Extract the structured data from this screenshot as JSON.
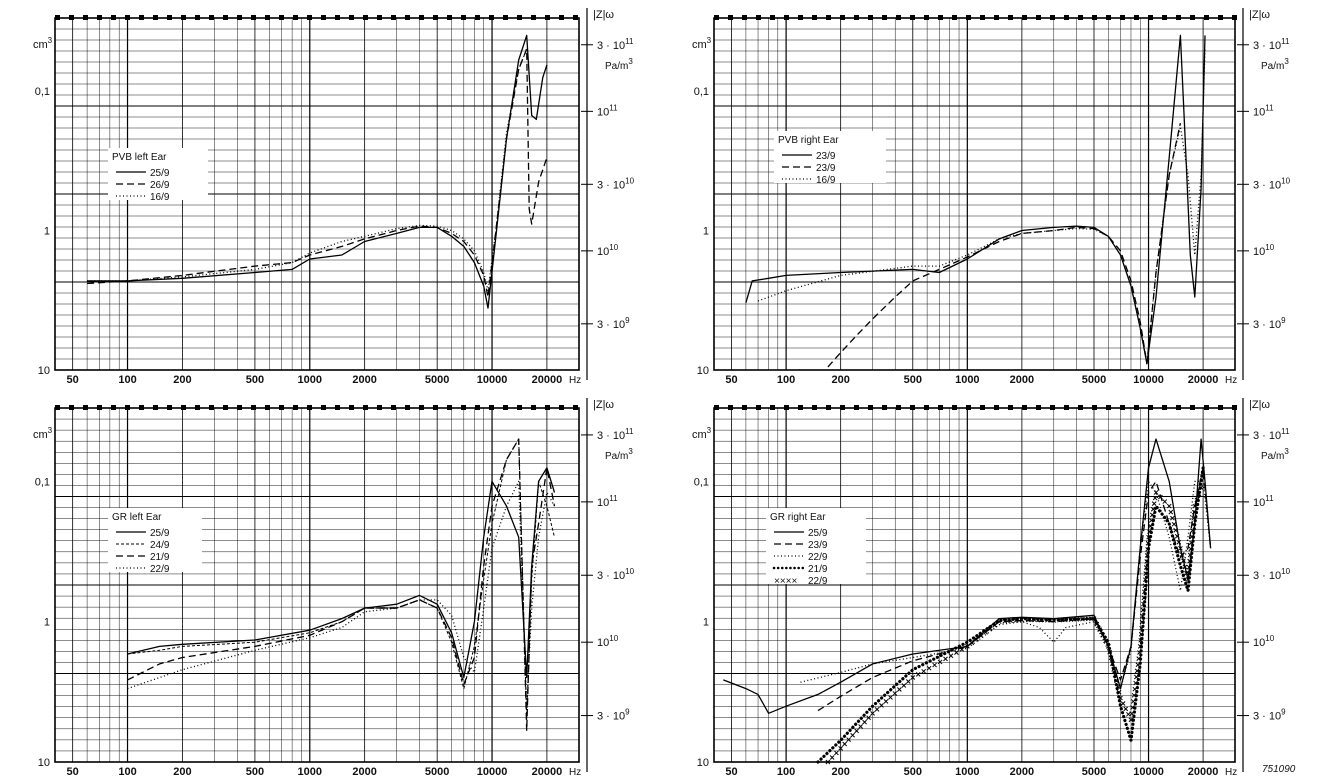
{
  "figure_id": "751090",
  "shared": {
    "x_tick_labels": [
      "50",
      "100",
      "200",
      "500",
      "1000",
      "2000",
      "5000",
      "10000",
      "20000"
    ],
    "x_unit": "Hz",
    "left_unit": "cm3",
    "left_tick_labels": [
      "0,1",
      "1",
      "10"
    ],
    "right_unit": "|Z|ω",
    "right_unit2": "Pa/m3",
    "right_tick_labels": [
      "3 · 10^11",
      "10^11",
      "3 · 10^10",
      "10^10",
      "3 · 10^9"
    ]
  },
  "chart_data": [
    {
      "type": "line",
      "panel": "top-left",
      "legend_title": "PVB left Ear",
      "x_scale": "log",
      "xlim": [
        40,
        30000
      ],
      "left_scale": "log",
      "left_axis_top": 0.03,
      "left_axis_bottom": 10,
      "series": [
        {
          "name": "25/9",
          "style": "solid",
          "x": [
            60,
            100,
            200,
            500,
            800,
            1000,
            1500,
            2000,
            3000,
            4000,
            5000,
            6000,
            7000,
            8000,
            9000,
            9500,
            10500,
            12000,
            14000,
            15500,
            16500,
            17500,
            19000,
            20000
          ],
          "y": [
            2.3,
            2.3,
            2.2,
            2.0,
            1.9,
            1.6,
            1.5,
            1.2,
            1.05,
            0.95,
            0.95,
            1.1,
            1.3,
            1.7,
            2.5,
            3.6,
            1.1,
            0.22,
            0.06,
            0.04,
            0.15,
            0.16,
            0.08,
            0.065
          ]
        },
        {
          "name": "26/9",
          "style": "dashed",
          "x": [
            60,
            100,
            200,
            500,
            800,
            1000,
            1500,
            2000,
            3000,
            4000,
            5000,
            6000,
            7000,
            8000,
            9000,
            9500,
            10500,
            12000,
            14000,
            15500,
            16000,
            16500,
            18000,
            20000
          ],
          "y": [
            2.4,
            2.3,
            2.1,
            1.8,
            1.7,
            1.5,
            1.3,
            1.15,
            1.0,
            0.93,
            0.95,
            1.05,
            1.2,
            1.5,
            2.1,
            3.0,
            1.0,
            0.22,
            0.07,
            0.05,
            0.7,
            0.9,
            0.45,
            0.3
          ]
        },
        {
          "name": "16/9",
          "style": "dotted",
          "x": [
            60,
            100,
            200,
            500,
            800,
            1000,
            1500,
            2000,
            3000,
            4000,
            5000,
            6000,
            7000,
            8000,
            9000,
            9500,
            10500,
            12000,
            14000,
            15500
          ],
          "y": [
            2.3,
            2.3,
            2.15,
            1.9,
            1.7,
            1.45,
            1.2,
            1.1,
            0.97,
            0.92,
            0.93,
            1.0,
            1.15,
            1.4,
            2.0,
            2.7,
            1.0,
            0.2,
            0.07,
            0.05
          ]
        }
      ]
    },
    {
      "type": "line",
      "panel": "top-right",
      "legend_title": "PVB right Ear",
      "x_scale": "log",
      "xlim": [
        40,
        30000
      ],
      "left_scale": "log",
      "left_axis_top": 0.03,
      "left_axis_bottom": 10,
      "series": [
        {
          "name": "23/9",
          "style": "solid",
          "x": [
            60,
            65,
            80,
            100,
            200,
            500,
            700,
            1000,
            1500,
            2000,
            3000,
            4000,
            5000,
            6000,
            7000,
            8000,
            9000,
            9800,
            11000,
            13000,
            15000,
            16000,
            17000,
            18000,
            19500,
            20500
          ],
          "y": [
            3.3,
            2.3,
            2.2,
            2.1,
            2.0,
            1.9,
            2.0,
            1.6,
            1.15,
            1.0,
            0.95,
            0.93,
            0.95,
            1.1,
            1.5,
            2.5,
            5.0,
            9.0,
            3.0,
            0.3,
            0.04,
            0.25,
            1.5,
            3.0,
            0.5,
            0.04
          ]
        },
        {
          "name": "23/9",
          "style": "dashed",
          "x": [
            170,
            200,
            250,
            300,
            400,
            500,
            700,
            1000,
            1500,
            2000,
            3000,
            4000,
            5000,
            6000,
            7000,
            8000,
            9000,
            9800,
            11000,
            13000,
            15000
          ],
          "y": [
            9.5,
            7.5,
            5.5,
            4.3,
            3.0,
            2.3,
            1.9,
            1.55,
            1.2,
            1.05,
            1.0,
            0.95,
            0.97,
            1.1,
            1.4,
            2.3,
            4.5,
            9.0,
            2.0,
            0.4,
            0.17
          ]
        },
        {
          "name": "16/9",
          "style": "dotted",
          "x": [
            70,
            100,
            200,
            500,
            700,
            1000,
            1500,
            2000,
            3000,
            4000,
            5000,
            6000,
            7000,
            8000,
            9000,
            9800,
            11000,
            13000,
            15000,
            16500,
            18000,
            19500,
            20500
          ],
          "y": [
            3.2,
            2.7,
            2.1,
            1.8,
            1.8,
            1.5,
            1.15,
            1.05,
            1.0,
            0.97,
            0.98,
            1.1,
            1.5,
            2.5,
            5.0,
            9.0,
            2.0,
            0.4,
            0.18,
            0.4,
            1.5,
            0.4,
            0.05
          ]
        }
      ]
    },
    {
      "type": "line",
      "panel": "bottom-left",
      "legend_title": "GR left Ear",
      "x_scale": "log",
      "xlim": [
        40,
        30000
      ],
      "left_scale": "log",
      "left_axis_top": 0.03,
      "left_axis_bottom": 10,
      "series": [
        {
          "name": "25/9",
          "style": "solid",
          "x": [
            100,
            150,
            200,
            500,
            1000,
            1500,
            2000,
            3000,
            4000,
            5000,
            6000,
            7000,
            8000,
            9000,
            10000,
            12000,
            14000,
            15500,
            16500,
            18000,
            20000,
            22000
          ],
          "y": [
            1.7,
            1.5,
            1.45,
            1.35,
            1.15,
            0.95,
            0.8,
            0.75,
            0.65,
            0.75,
            1.2,
            2.5,
            1.0,
            0.25,
            0.1,
            0.15,
            0.25,
            2.5,
            0.4,
            0.1,
            0.08,
            0.12
          ]
        },
        {
          "name": "24/9",
          "style": "short-dash",
          "x": [
            100,
            150,
            200,
            500,
            1000,
            1500,
            2000,
            3000,
            4000,
            5000,
            6000,
            7000,
            8000,
            9000,
            10000,
            12000,
            14000,
            15500,
            16500,
            18000,
            20000,
            22000
          ],
          "y": [
            1.7,
            1.6,
            1.5,
            1.4,
            1.2,
            1.0,
            0.8,
            0.8,
            0.7,
            0.8,
            1.4,
            3.0,
            1.5,
            0.5,
            0.2,
            0.07,
            0.05,
            5.0,
            0.5,
            0.1,
            0.15,
            0.25
          ]
        },
        {
          "name": "21/9",
          "style": "dashed",
          "x": [
            100,
            150,
            200,
            500,
            1000,
            1500,
            2000,
            3000,
            4000,
            5000,
            6000,
            7000,
            8000,
            9000,
            10000,
            12000,
            14000,
            15500,
            16500,
            18000,
            20000,
            22000
          ],
          "y": [
            2.6,
            2.0,
            1.8,
            1.5,
            1.25,
            1.0,
            0.8,
            0.8,
            0.7,
            0.8,
            1.3,
            2.8,
            1.8,
            0.4,
            0.15,
            0.07,
            0.05,
            6.0,
            0.4,
            0.2,
            0.08,
            0.15
          ]
        },
        {
          "name": "22/9",
          "style": "dotted",
          "x": [
            100,
            150,
            200,
            500,
            1000,
            1500,
            2000,
            3000,
            4000,
            5000,
            6000,
            7000,
            8000,
            9000,
            10000,
            12000,
            14000,
            15500,
            16500,
            18000,
            20000,
            22000
          ],
          "y": [
            3.0,
            2.5,
            2.2,
            1.6,
            1.3,
            1.1,
            0.85,
            0.8,
            0.7,
            0.7,
            0.9,
            1.8,
            2.3,
            0.8,
            0.3,
            0.15,
            0.1,
            4.0,
            0.8,
            0.25,
            0.12,
            0.15
          ]
        }
      ]
    },
    {
      "type": "line",
      "panel": "bottom-right",
      "legend_title": "GR right Ear",
      "x_scale": "log",
      "xlim": [
        40,
        30000
      ],
      "left_scale": "log",
      "left_axis_top": 0.03,
      "left_axis_bottom": 10,
      "series": [
        {
          "name": "25/9",
          "style": "solid",
          "x": [
            45,
            60,
            70,
            80,
            100,
            150,
            200,
            300,
            500,
            1000,
            1500,
            2000,
            3000,
            5000,
            6000,
            7000,
            8000,
            9000,
            10000,
            11000,
            13000,
            15000,
            16500,
            18000,
            19500,
            20500,
            22000
          ],
          "y": [
            2.6,
            3.0,
            3.3,
            4.5,
            4.0,
            3.3,
            2.7,
            2.0,
            1.7,
            1.5,
            0.95,
            0.93,
            0.95,
            0.9,
            1.5,
            3.0,
            1.5,
            0.3,
            0.08,
            0.05,
            0.1,
            0.3,
            0.5,
            0.2,
            0.05,
            0.1,
            0.3
          ]
        },
        {
          "name": "23/9",
          "style": "dashed",
          "x": [
            150,
            200,
            300,
            500,
            1000,
            1500,
            2000,
            3000,
            5000,
            6000,
            7000,
            8000,
            9000,
            10000,
            11000,
            13000,
            15000,
            16500,
            18000,
            20000,
            22000
          ],
          "y": [
            4.3,
            3.4,
            2.5,
            1.9,
            1.5,
            1.0,
            0.98,
            1.0,
            0.95,
            1.5,
            2.6,
            1.5,
            0.35,
            0.12,
            0.1,
            0.2,
            0.35,
            0.3,
            0.15,
            0.08,
            0.3
          ]
        },
        {
          "name": "22/9",
          "style": "dotted",
          "x": [
            120,
            200,
            300,
            500,
            1000,
            1500,
            2000,
            2500,
            3000,
            3500,
            5000,
            6000,
            7000,
            8000,
            9000,
            10000,
            11000,
            13000,
            15000,
            16500,
            18000,
            20000,
            22000
          ],
          "y": [
            2.7,
            2.3,
            2.0,
            1.8,
            1.55,
            1.05,
            1.0,
            1.1,
            1.4,
            1.1,
            1.0,
            1.6,
            3.0,
            1.6,
            0.3,
            0.1,
            0.12,
            0.25,
            0.6,
            0.25,
            0.1,
            0.1,
            0.3
          ]
        },
        {
          "name": "21/9",
          "style": "heavy-dots",
          "x": [
            150,
            200,
            300,
            500,
            1000,
            1500,
            2000,
            3000,
            5000,
            6000,
            7000,
            8000,
            9000,
            10000,
            11000,
            13000,
            15000,
            16500,
            18000,
            20000
          ],
          "y": [
            10.0,
            7.0,
            4.0,
            2.2,
            1.4,
            0.98,
            0.95,
            0.97,
            0.95,
            1.4,
            4.0,
            7.0,
            2.0,
            0.3,
            0.15,
            0.2,
            0.4,
            0.6,
            0.2,
            0.08
          ]
        },
        {
          "name": "22/9",
          "style": "crosses",
          "x": [
            170,
            200,
            300,
            500,
            1000,
            1500,
            2000,
            3000,
            5000,
            6000,
            7000,
            8000,
            9000,
            10000,
            11000,
            13000,
            15000,
            16500,
            18000,
            20000
          ],
          "y": [
            10.0,
            8.0,
            4.5,
            2.5,
            1.5,
            1.0,
            0.97,
            0.98,
            0.95,
            1.5,
            3.5,
            5.0,
            1.5,
            0.25,
            0.12,
            0.15,
            0.3,
            0.5,
            0.15,
            0.1
          ]
        }
      ]
    }
  ]
}
